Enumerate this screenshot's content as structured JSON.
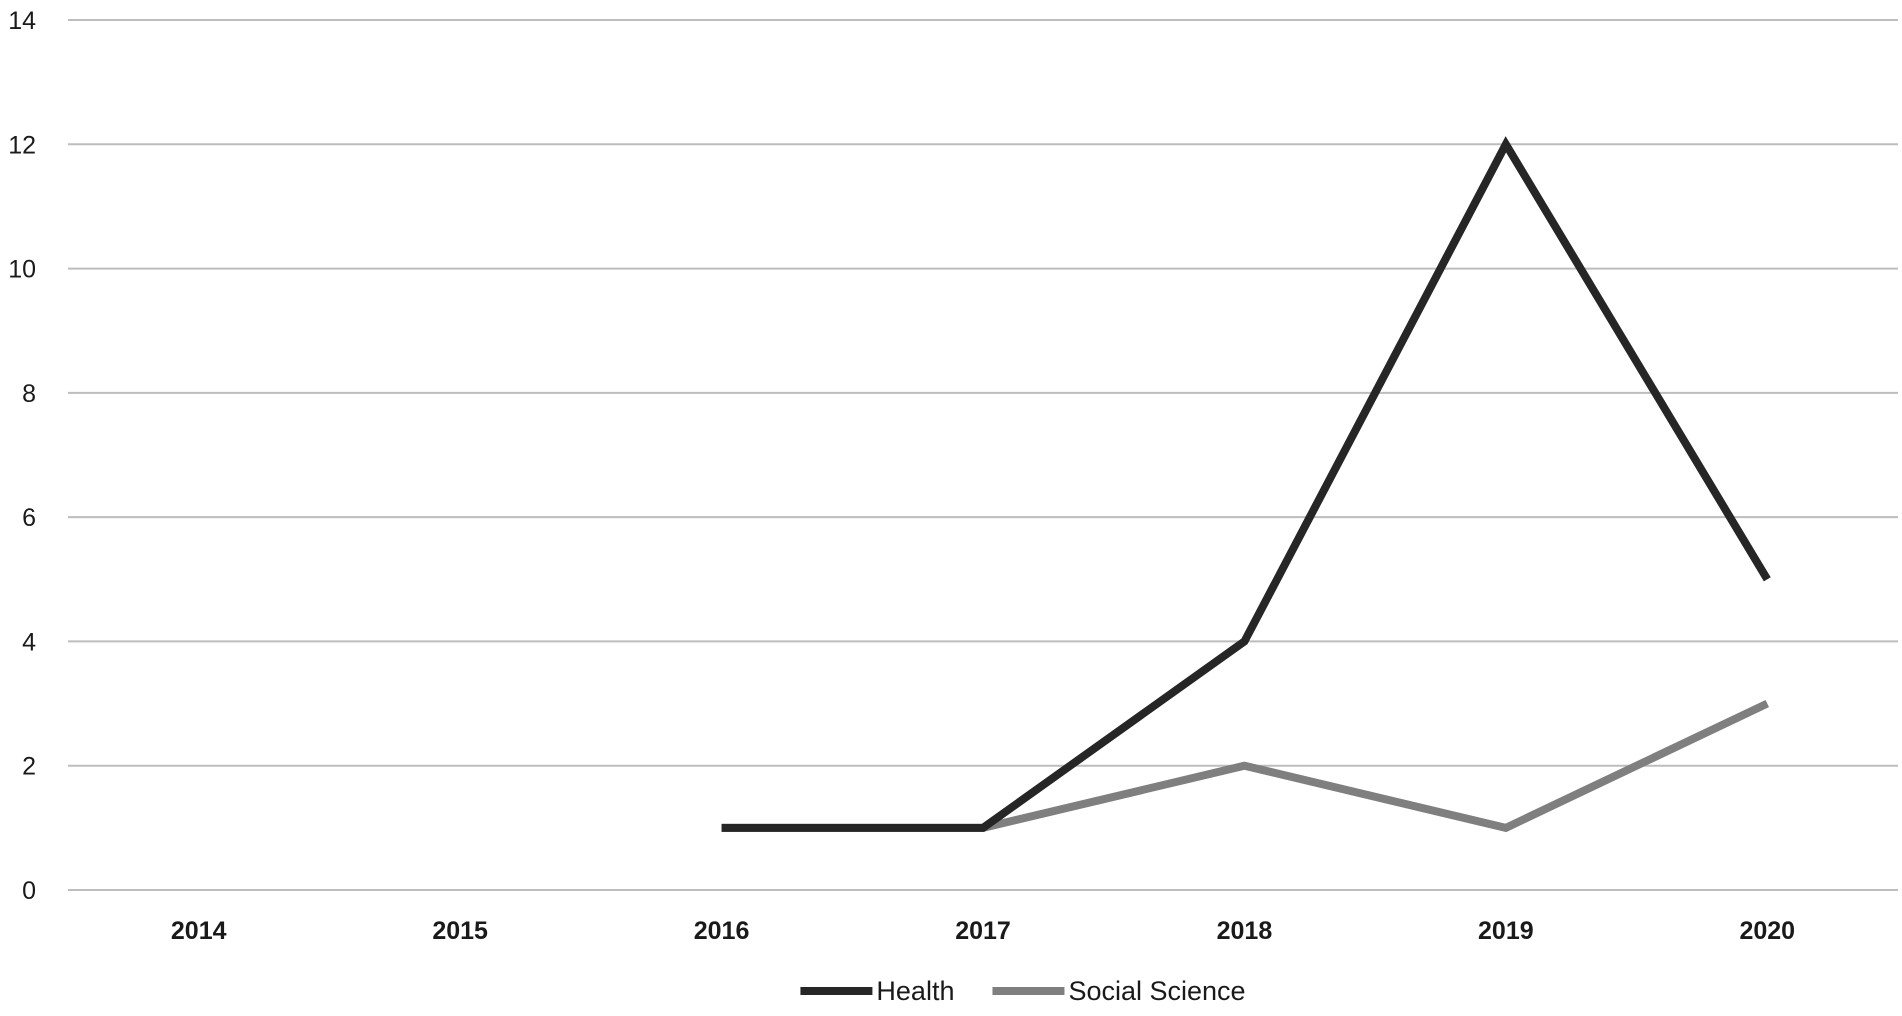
{
  "chart_data": {
    "type": "line",
    "title": "",
    "xlabel": "",
    "ylabel": "",
    "categories": [
      "2014",
      "2015",
      "2016",
      "2017",
      "2018",
      "2019",
      "2020"
    ],
    "ylim": [
      0,
      14
    ],
    "yticks": [
      0,
      2,
      4,
      6,
      8,
      10,
      12,
      14
    ],
    "grid": true,
    "legend_position": "bottom",
    "series": [
      {
        "name": "Health",
        "color": "#262626",
        "values": [
          null,
          null,
          1,
          1,
          4,
          12,
          5
        ]
      },
      {
        "name": "Social Science",
        "color": "#7f7f7f",
        "values": [
          null,
          null,
          1,
          1,
          2,
          1,
          3
        ]
      }
    ]
  }
}
